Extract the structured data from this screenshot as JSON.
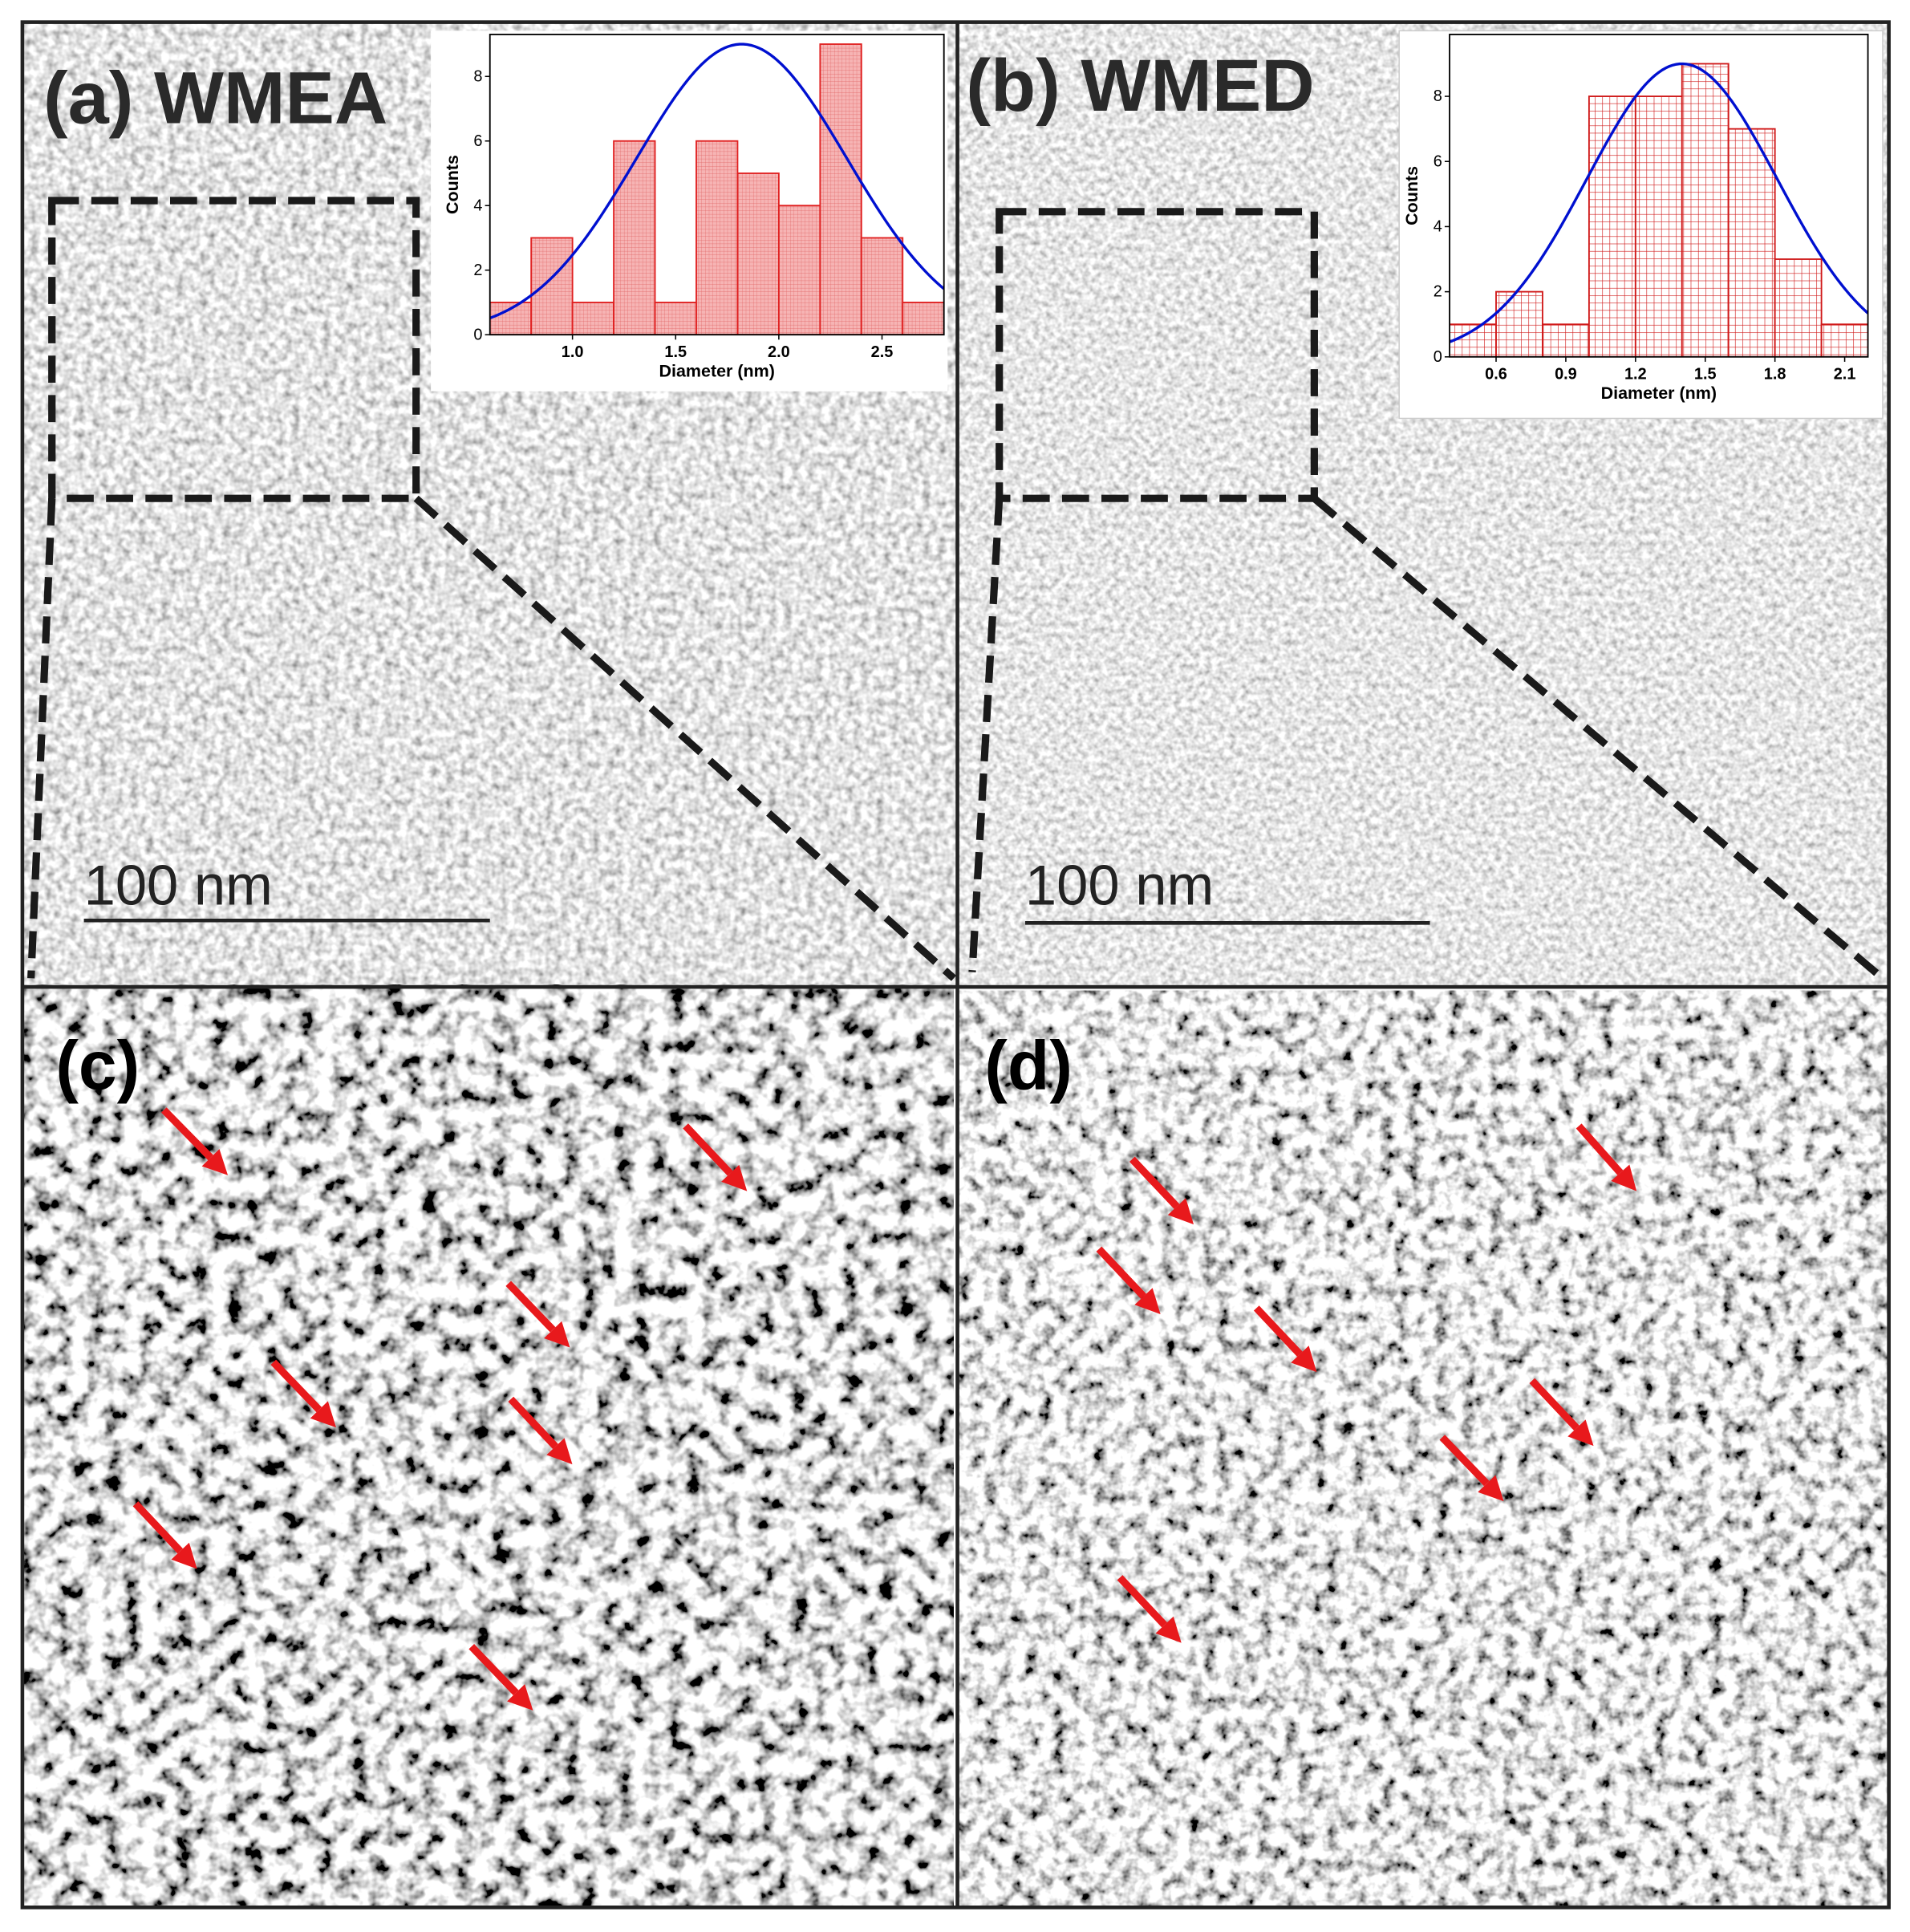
{
  "panels": {
    "a": "(a) WMEA",
    "b": "(b) WMED",
    "c": "(c)",
    "d": "(d)"
  },
  "scale_bars": [
    "100 nm",
    "100 nm"
  ],
  "chart_data": [
    {
      "type": "histogram",
      "bins": [
        0.6,
        0.8,
        1.0,
        1.2,
        1.4,
        1.6,
        1.8,
        2.0,
        2.2,
        2.4,
        2.6,
        2.8
      ],
      "values": [
        1,
        3,
        1,
        6,
        1,
        6,
        5,
        4,
        9,
        3,
        1
      ],
      "xlim": [
        0.6,
        2.8
      ],
      "ylim": [
        0,
        9.3
      ],
      "xticks": [
        {
          "value": 1,
          "label": "1.0"
        },
        1.5,
        {
          "value": 2,
          "label": "2.0"
        },
        2.5
      ],
      "yticks": [
        0,
        2,
        4,
        6,
        8
      ],
      "xlabel": "Diameter (nm)",
      "ylabel": "Counts",
      "color": "#e02020",
      "fill": "#f6b4b4",
      "fit": {
        "mean": 1.82,
        "sigma": 0.51,
        "peak": 9,
        "color": "#0010d0"
      }
    },
    {
      "type": "histogram",
      "bins": [
        0.4,
        0.6,
        0.8,
        1.0,
        1.2,
        1.4,
        1.6,
        1.8,
        2.0,
        2.2
      ],
      "values": [
        1,
        2,
        1,
        8,
        8,
        9,
        7,
        3,
        1
      ],
      "xlim": [
        0.4,
        2.2
      ],
      "ylim": [
        0,
        9.9
      ],
      "xticks": [
        0.6,
        0.9,
        1.2,
        1.5,
        1.8,
        2.1
      ],
      "yticks": [
        0,
        2,
        4,
        6,
        8
      ],
      "xlabel": "Diameter (nm)",
      "ylabel": "Counts",
      "color": "#d01818",
      "fill": "#ffffff",
      "fit": {
        "mean": 1.4,
        "sigma": 0.41,
        "peak": 9,
        "color": "#0010d0"
      }
    }
  ]
}
